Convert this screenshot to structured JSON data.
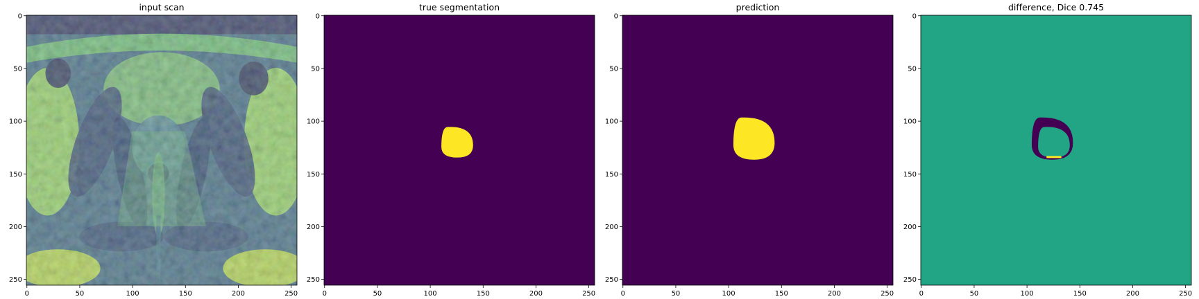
{
  "chart_data": [
    {
      "type": "heatmap",
      "title": "input scan",
      "colormap": "viridis",
      "xlim": [
        0,
        256
      ],
      "ylim": [
        256,
        0
      ],
      "xticks": [
        0,
        50,
        100,
        150,
        200,
        250
      ],
      "yticks": [
        0,
        50,
        100,
        150,
        200,
        250
      ],
      "content": "mri"
    },
    {
      "type": "heatmap",
      "title": "true segmentation",
      "colormap": "viridis",
      "xlim": [
        0,
        256
      ],
      "ylim": [
        256,
        0
      ],
      "xticks": [
        0,
        50,
        100,
        150,
        200,
        250
      ],
      "yticks": [
        0,
        50,
        100,
        150,
        200,
        250
      ],
      "background_color": "#440154",
      "foreground_color": "#fde725",
      "blob": {
        "x_min": 111,
        "x_max": 141,
        "y_min": 106,
        "y_max": 135
      }
    },
    {
      "type": "heatmap",
      "title": "prediction",
      "colormap": "viridis",
      "xlim": [
        0,
        256
      ],
      "ylim": [
        256,
        0
      ],
      "xticks": [
        0,
        50,
        100,
        150,
        200,
        250
      ],
      "yticks": [
        0,
        50,
        100,
        150,
        200,
        250
      ],
      "background_color": "#440154",
      "foreground_color": "#fde725",
      "blob": {
        "x_min": 105,
        "x_max": 144,
        "y_min": 97,
        "y_max": 137
      }
    },
    {
      "type": "heatmap",
      "title": "difference, Dice 0.745",
      "colormap": "viridis",
      "xlim": [
        0,
        256
      ],
      "ylim": [
        256,
        0
      ],
      "xticks": [
        0,
        50,
        100,
        150,
        200,
        250
      ],
      "yticks": [
        0,
        50,
        100,
        150,
        200,
        250
      ],
      "background_color": "#21a585",
      "negative_color": "#440154",
      "positive_color": "#fde725",
      "ring_outer": {
        "x_min": 105,
        "x_max": 144,
        "y_min": 97,
        "y_max": 137
      },
      "ring_inner": {
        "x_min": 111,
        "x_max": 141,
        "y_min": 106,
        "y_max": 135
      }
    }
  ]
}
